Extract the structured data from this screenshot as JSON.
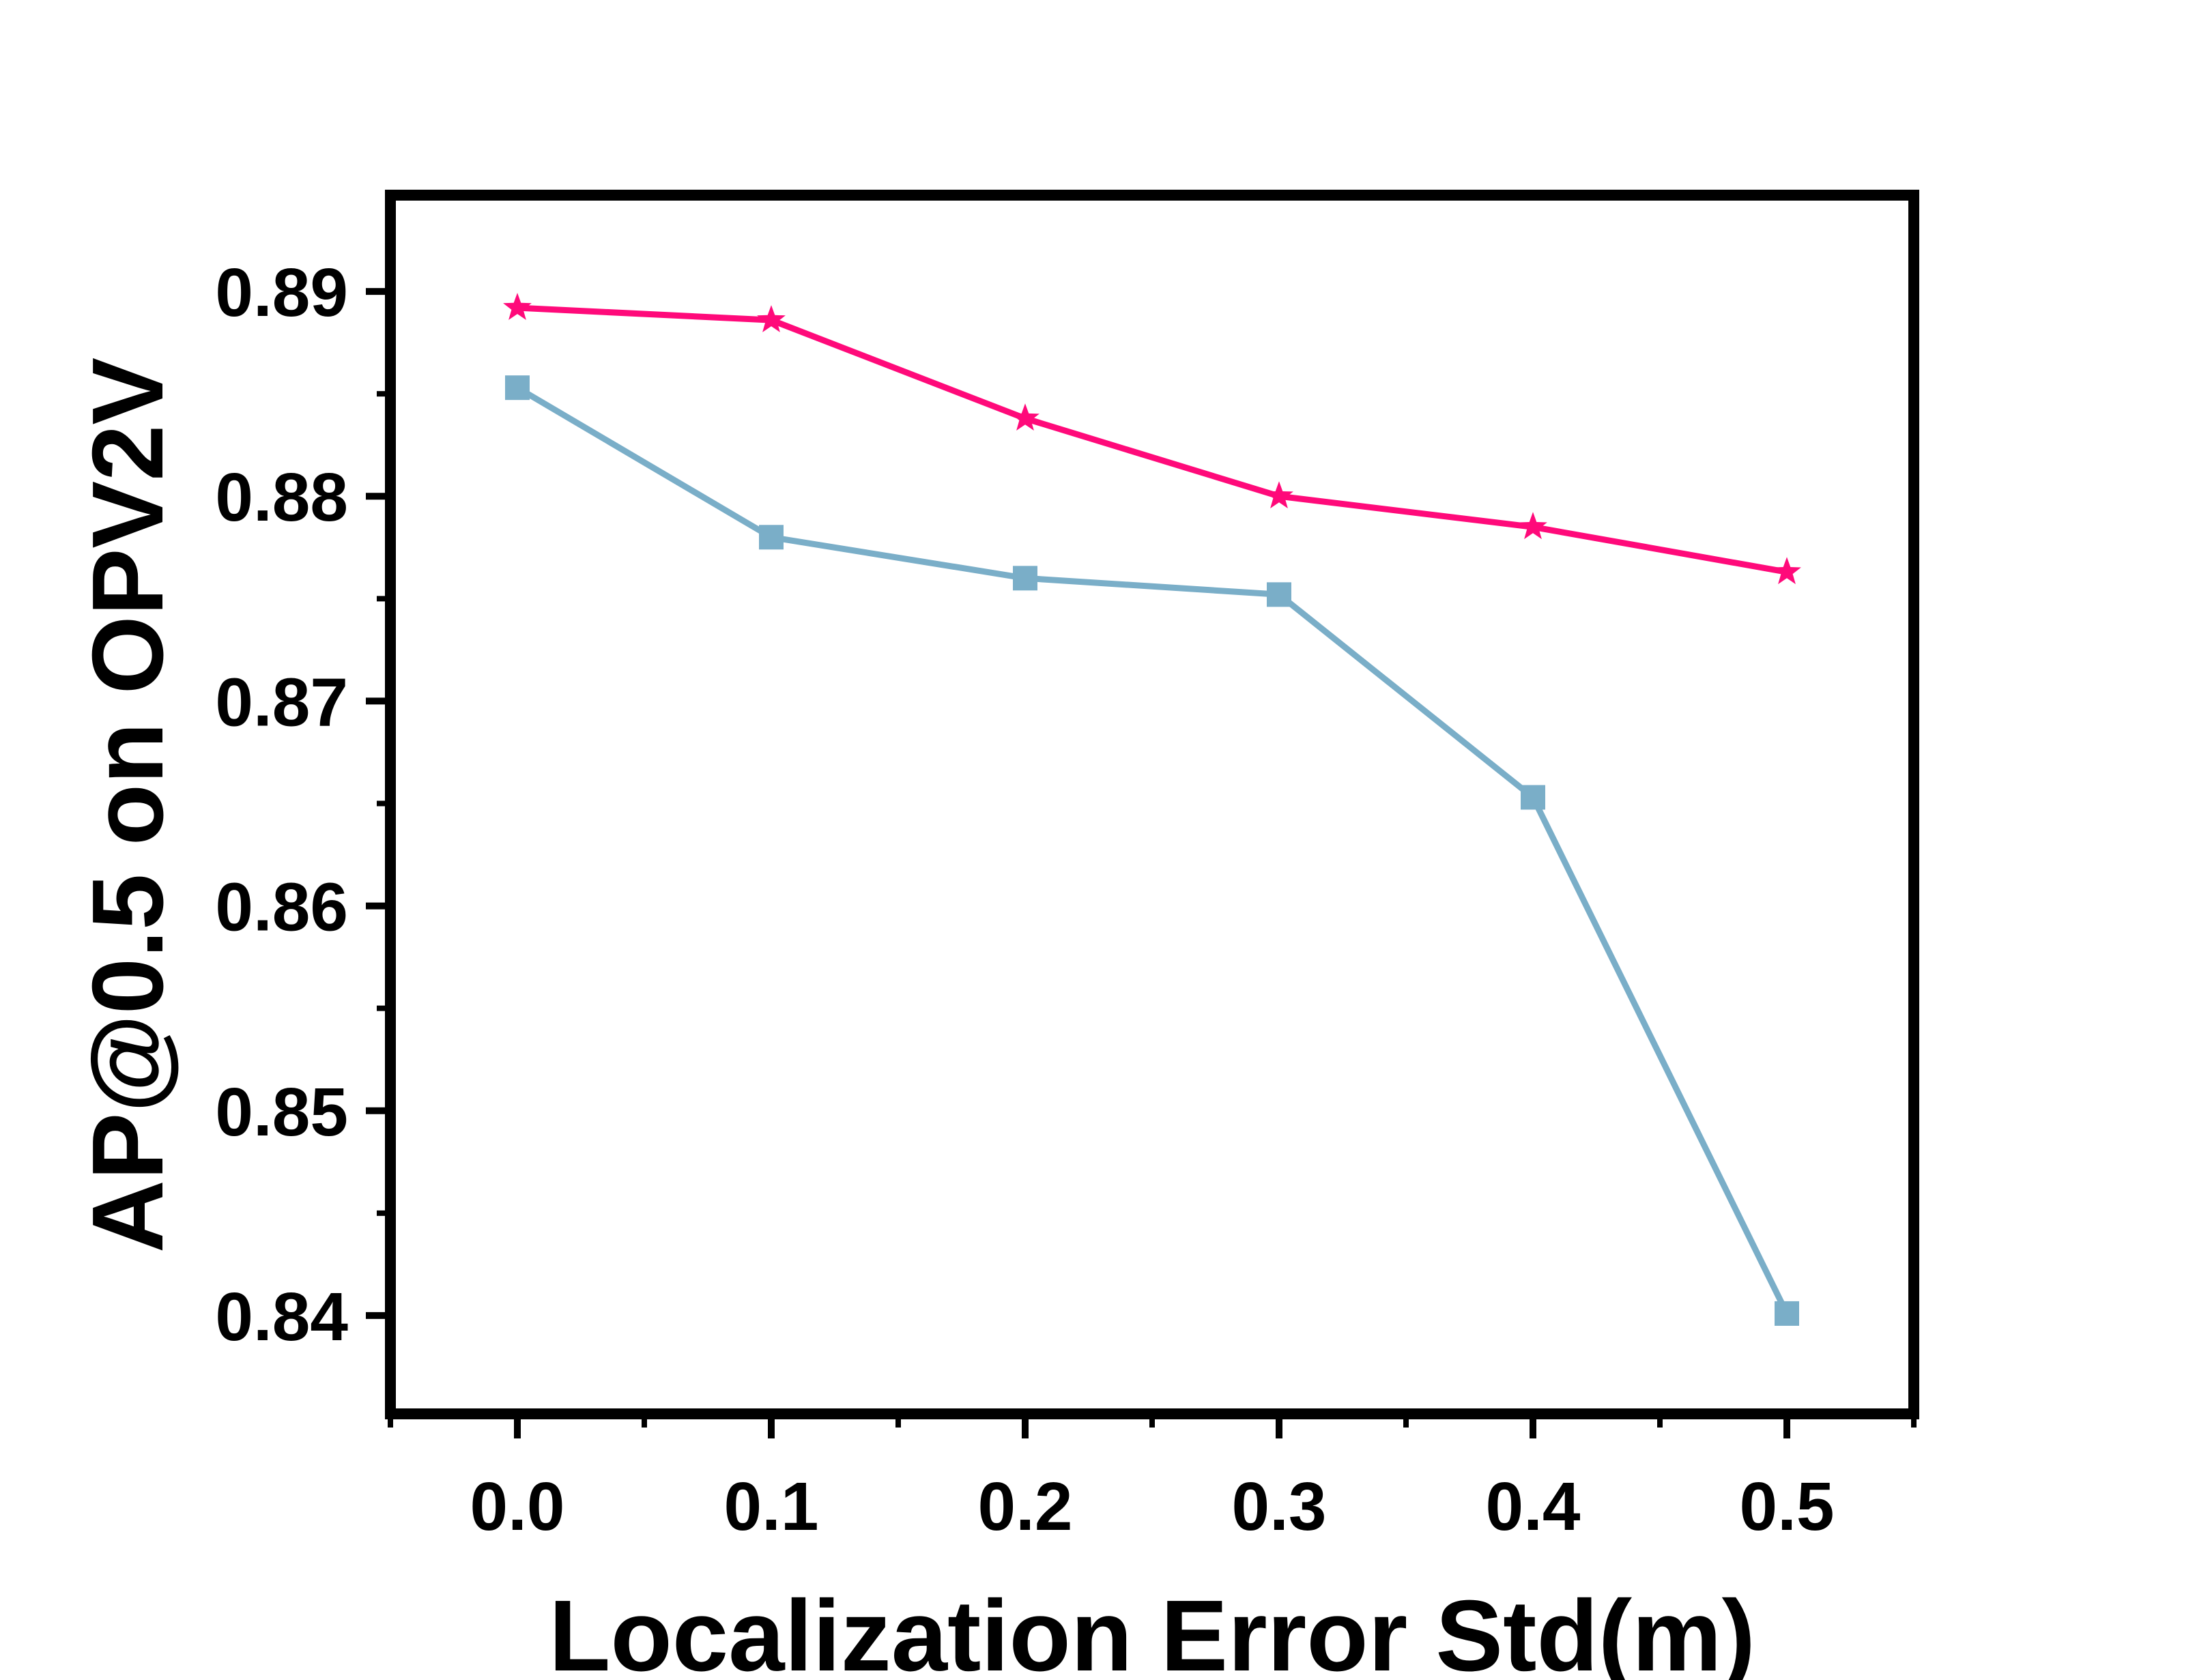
{
  "chart_data": {
    "type": "line",
    "title": "",
    "xlabel": "Localization Error Std(m)",
    "ylabel": "AP@0.5 on OPV2V",
    "x": [
      0.0,
      0.1,
      0.2,
      0.3,
      0.4,
      0.5
    ],
    "x_ticks": [
      "0.0",
      "0.1",
      "0.2",
      "0.3",
      "0.4",
      "0.5"
    ],
    "y_ticks": [
      "0.84",
      "0.85",
      "0.86",
      "0.87",
      "0.88",
      "0.89"
    ],
    "xlim": [
      -0.05,
      0.55
    ],
    "ylim": [
      0.8352,
      0.8947
    ],
    "grid": false,
    "legend": "none",
    "series": [
      {
        "color": "#ff0a7a",
        "marker": "star",
        "values": [
          0.8892,
          0.8886,
          0.8838,
          0.88,
          0.8785,
          0.8763
        ]
      },
      {
        "color": "#7aaec8",
        "marker": "square",
        "values": [
          0.8853,
          0.878,
          0.876,
          0.8752,
          0.8653,
          0.8401
        ]
      }
    ]
  }
}
